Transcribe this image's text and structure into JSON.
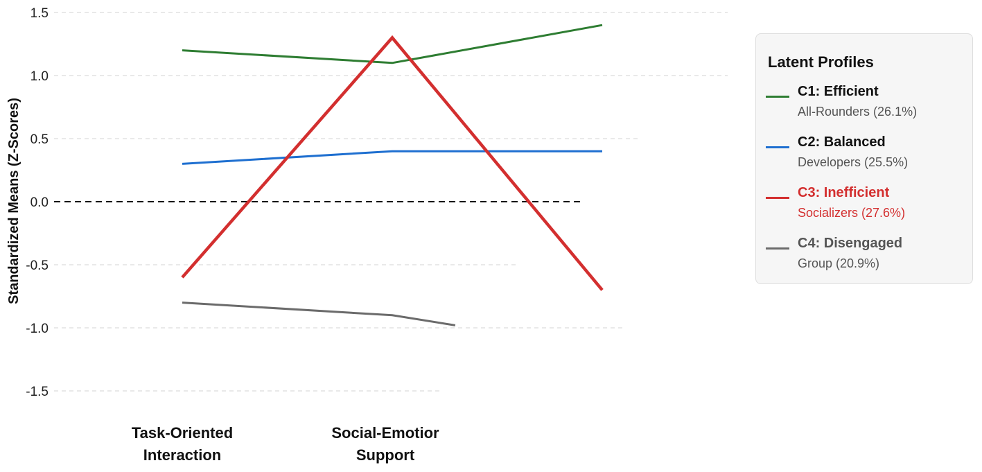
{
  "chart_data": {
    "type": "line",
    "title": "",
    "xlabel": "",
    "ylabel": "Standardized Means (Z-Scores)",
    "categories": [
      [
        "Task-Oriented",
        "Interaction"
      ],
      [
        "Social-Emotior",
        "Support"
      ],
      [
        "",
        ""
      ]
    ],
    "ylim": [
      -1.5,
      1.5
    ],
    "yticks": [
      "1.5",
      "1.0",
      "0.5",
      "0.0",
      "-0.5",
      "-1.0",
      "-1.5"
    ],
    "ytick_values": [
      1.5,
      1.0,
      0.5,
      0.0,
      -0.5,
      -1.0,
      -1.5
    ],
    "grid": true,
    "reference_line": 0,
    "legend_position": "right",
    "series": [
      {
        "id": "c1",
        "name": "C1: Efficient",
        "x": [
          0,
          1,
          2
        ],
        "values": [
          1.2,
          1.1,
          1.4
        ],
        "color": "#2e7d32"
      },
      {
        "id": "c2",
        "name": "C2: Balanced",
        "x": [
          0,
          1,
          2
        ],
        "values": [
          0.3,
          0.4,
          0.4
        ],
        "color": "#1e6fd0"
      },
      {
        "id": "c3",
        "name": "C3: Inefficient",
        "x": [
          0,
          1,
          2
        ],
        "values": [
          -0.6,
          1.3,
          -0.7
        ],
        "color": "#d32f2f"
      },
      {
        "id": "c4",
        "name": "C4: Disengaged",
        "x": [
          0,
          1,
          1.3
        ],
        "values": [
          -0.8,
          -0.9,
          -0.98
        ],
        "color": "#6b6b6b"
      }
    ]
  },
  "legend": {
    "title": "Latent Profiles",
    "items": [
      {
        "name": "C1: Efficient",
        "sub": "All-Rounders (26.1%)",
        "color": "#2e7d32",
        "text_color": "#111111",
        "sub_color": "#555555"
      },
      {
        "name": "C2: Balanced",
        "sub": "Developers (25.5%)",
        "color": "#1e6fd0",
        "text_color": "#111111",
        "sub_color": "#555555"
      },
      {
        "name": "C3: Inefficient",
        "sub": "Socializers (27.6%)",
        "color": "#d32f2f",
        "text_color": "#d32f2f",
        "sub_color": "#d32f2f"
      },
      {
        "name": "C4: Disengaged",
        "sub": "Group (20.9%)",
        "color": "#6b6b6b",
        "text_color": "#555555",
        "sub_color": "#555555"
      }
    ]
  }
}
